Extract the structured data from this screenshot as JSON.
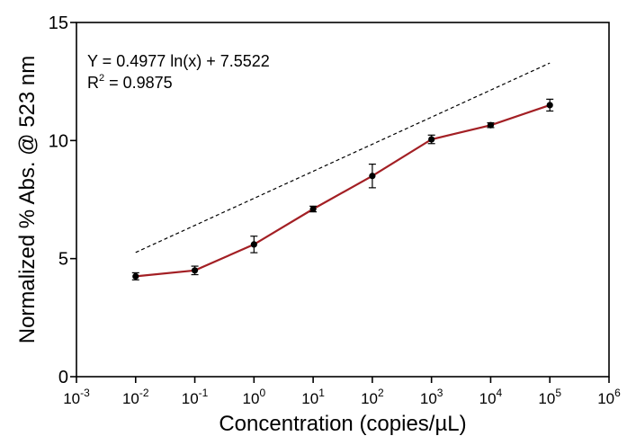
{
  "chart_data": {
    "type": "line",
    "xlabel": "Concentration (copies/µL)",
    "ylabel": "Normalized % Abs. @ 523 nm",
    "x_scale": "log10",
    "xlim": [
      0.001,
      1000000
    ],
    "ylim": [
      0,
      15
    ],
    "x_ticks": [
      {
        "base": "10",
        "exp": "-3"
      },
      {
        "base": "10",
        "exp": "-2"
      },
      {
        "base": "10",
        "exp": "-1"
      },
      {
        "base": "10",
        "exp": "0"
      },
      {
        "base": "10",
        "exp": "1"
      },
      {
        "base": "10",
        "exp": "2"
      },
      {
        "base": "10",
        "exp": "3"
      },
      {
        "base": "10",
        "exp": "4"
      },
      {
        "base": "10",
        "exp": "5"
      },
      {
        "base": "10",
        "exp": "6"
      }
    ],
    "y_ticks": [
      "0",
      "5",
      "10",
      "15"
    ],
    "grid": false,
    "annotation": {
      "equation": "Y = 0.4977 ln(x) + 7.5522",
      "r2_prefix": "R",
      "r2_sup": "2",
      "r2_value": " = 0.9875"
    },
    "series": [
      {
        "color": "#a31f24",
        "style": "solid-with-markers",
        "marker_color": "#000000",
        "x": [
          0.01,
          0.1,
          1,
          10,
          100,
          1000,
          10000,
          100000
        ],
        "y": [
          4.25,
          4.5,
          5.6,
          7.1,
          8.5,
          10.05,
          10.65,
          11.5
        ],
        "error": [
          0.15,
          0.18,
          0.35,
          0.12,
          0.5,
          0.18,
          0.1,
          0.25
        ]
      }
    ],
    "fit": {
      "style": "dashed",
      "color": "#000000",
      "x_range": [
        0.01,
        100000
      ],
      "slope_ln": 0.4977,
      "intercept": 7.5522
    }
  }
}
